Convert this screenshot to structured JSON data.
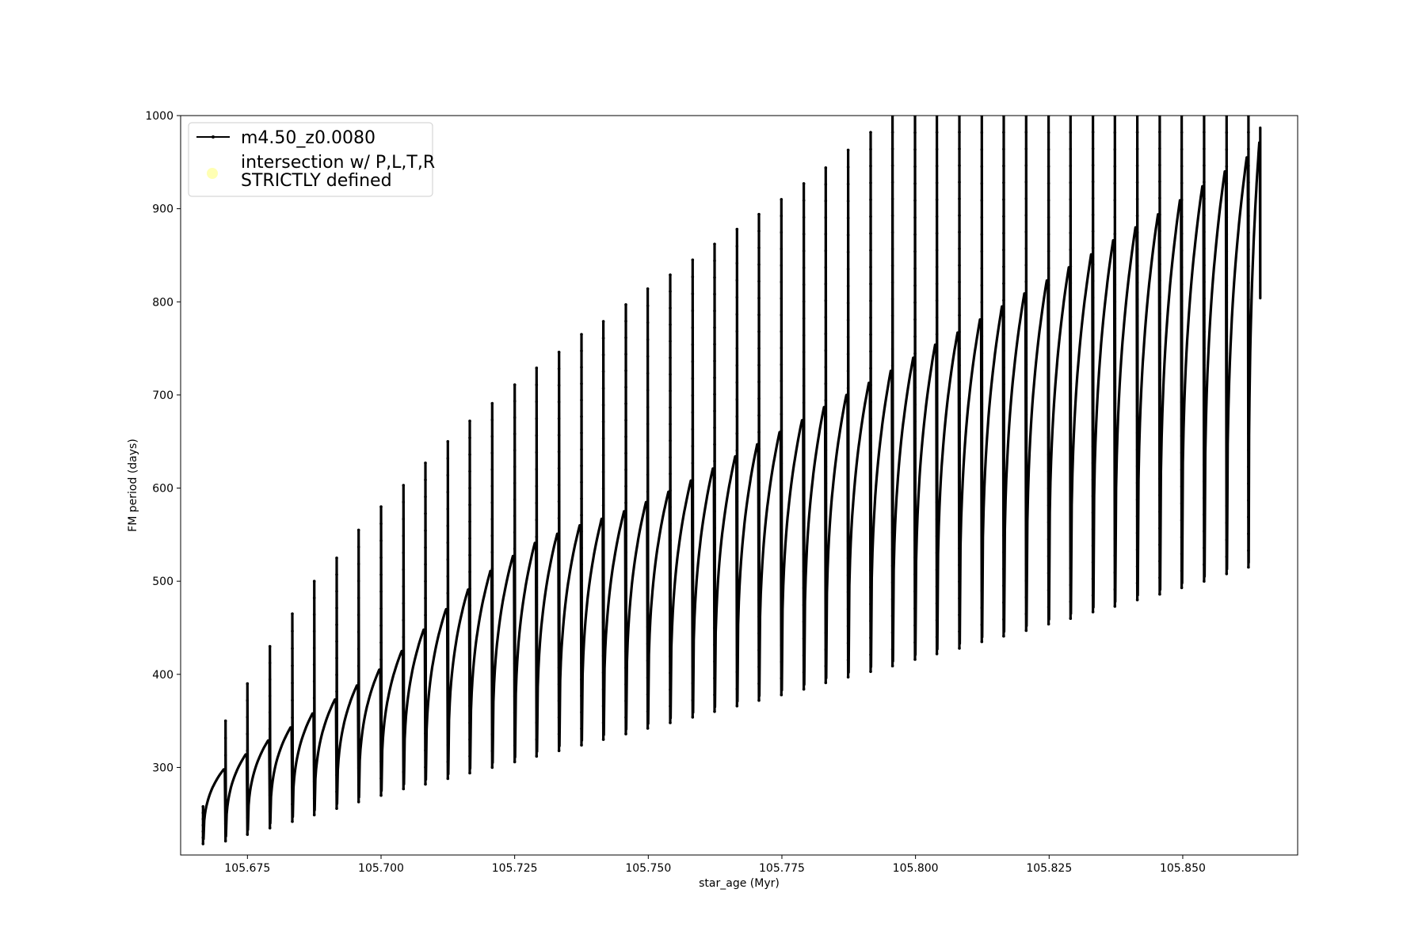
{
  "chart_data": {
    "type": "line",
    "title": "",
    "xlabel": "star_age (Myr)",
    "ylabel": "FM period (days)",
    "xlim": [
      105.6625,
      105.8715
    ],
    "ylim": [
      206,
      1000
    ],
    "x_ticks": [
      105.675,
      105.7,
      105.725,
      105.75,
      105.775,
      105.8,
      105.825,
      105.85
    ],
    "x_tick_labels": [
      "105.675",
      "105.700",
      "105.725",
      "105.750",
      "105.775",
      "105.800",
      "105.825",
      "105.850"
    ],
    "y_ticks": [
      300,
      400,
      500,
      600,
      700,
      800,
      900,
      1000
    ],
    "y_tick_labels": [
      "300",
      "400",
      "500",
      "600",
      "700",
      "800",
      "900",
      "1000"
    ],
    "grid": false,
    "legend_position": "top-left",
    "series": [
      {
        "name": "m4.50_z0.0080",
        "color": "#000000",
        "marker": "dot",
        "description_pulses": "thermal-pulse cycles: each cycle rises from a trough to a plateau, then drops sharply",
        "pulse_start_x": [
          105.6667,
          105.6709,
          105.675,
          105.6792,
          105.6834,
          105.6875,
          105.6917,
          105.6958,
          105.7,
          105.7042,
          105.7083,
          105.7125,
          105.7166,
          105.7208,
          105.725,
          105.7291,
          105.7333,
          105.7375,
          105.7416,
          105.7458,
          105.7499,
          105.7541,
          105.7583,
          105.7624,
          105.7666,
          105.7707,
          105.7749,
          105.7791,
          105.7832,
          105.7874,
          105.7916,
          105.7957,
          105.7999,
          105.804,
          105.8082,
          105.8124,
          105.8165,
          105.8207,
          105.8249,
          105.829,
          105.8332,
          105.8373,
          105.8415,
          105.8457,
          105.8498,
          105.854,
          105.8582,
          105.8623
        ],
        "trough_y": [
          218,
          221,
          228,
          235,
          242,
          249,
          256,
          263,
          270,
          277,
          282,
          288,
          294,
          300,
          306,
          312,
          318,
          324,
          330,
          336,
          342,
          348,
          354,
          360,
          366,
          372,
          378,
          384,
          391,
          397,
          403,
          409,
          416,
          422,
          428,
          435,
          441,
          447,
          454,
          460,
          467,
          473,
          480,
          486,
          493,
          500,
          508,
          515
        ],
        "plateau_y": [
          298,
          314,
          329,
          343,
          358,
          373,
          388,
          405,
          425,
          448,
          470,
          491,
          511,
          527,
          541,
          551,
          560,
          567,
          575,
          585,
          596,
          608,
          621,
          634,
          647,
          660,
          673,
          687,
          700,
          713,
          726,
          740,
          754,
          767,
          781,
          795,
          809,
          823,
          837,
          851,
          866,
          880,
          894,
          909,
          924,
          940,
          955,
          971
        ],
        "spike_y": [
          258,
          350,
          390,
          430,
          465,
          500,
          525,
          555,
          580,
          603,
          627,
          650,
          672,
          691,
          711,
          729,
          746,
          765,
          779,
          797,
          814,
          829,
          845,
          862,
          878,
          894,
          910,
          927,
          944,
          963,
          982,
          1000,
          1000,
          1000,
          1000,
          1000,
          1000,
          1000,
          1000,
          1000,
          1000,
          1000,
          1000,
          1000,
          1000,
          1000,
          1000,
          1000
        ],
        "final_x": 105.8645,
        "final_plateau_y": 987,
        "final_drop_y": 804
      },
      {
        "name": "intersection w/ P,L,T,R\nSTRICTLY defined",
        "color": "#ffffb3",
        "marker": "circle",
        "values": []
      }
    ]
  },
  "legend": {
    "line1": "m4.50_z0.0080",
    "line2a": "intersection w/ P,L,T,R",
    "line2b": "STRICTLY defined"
  }
}
